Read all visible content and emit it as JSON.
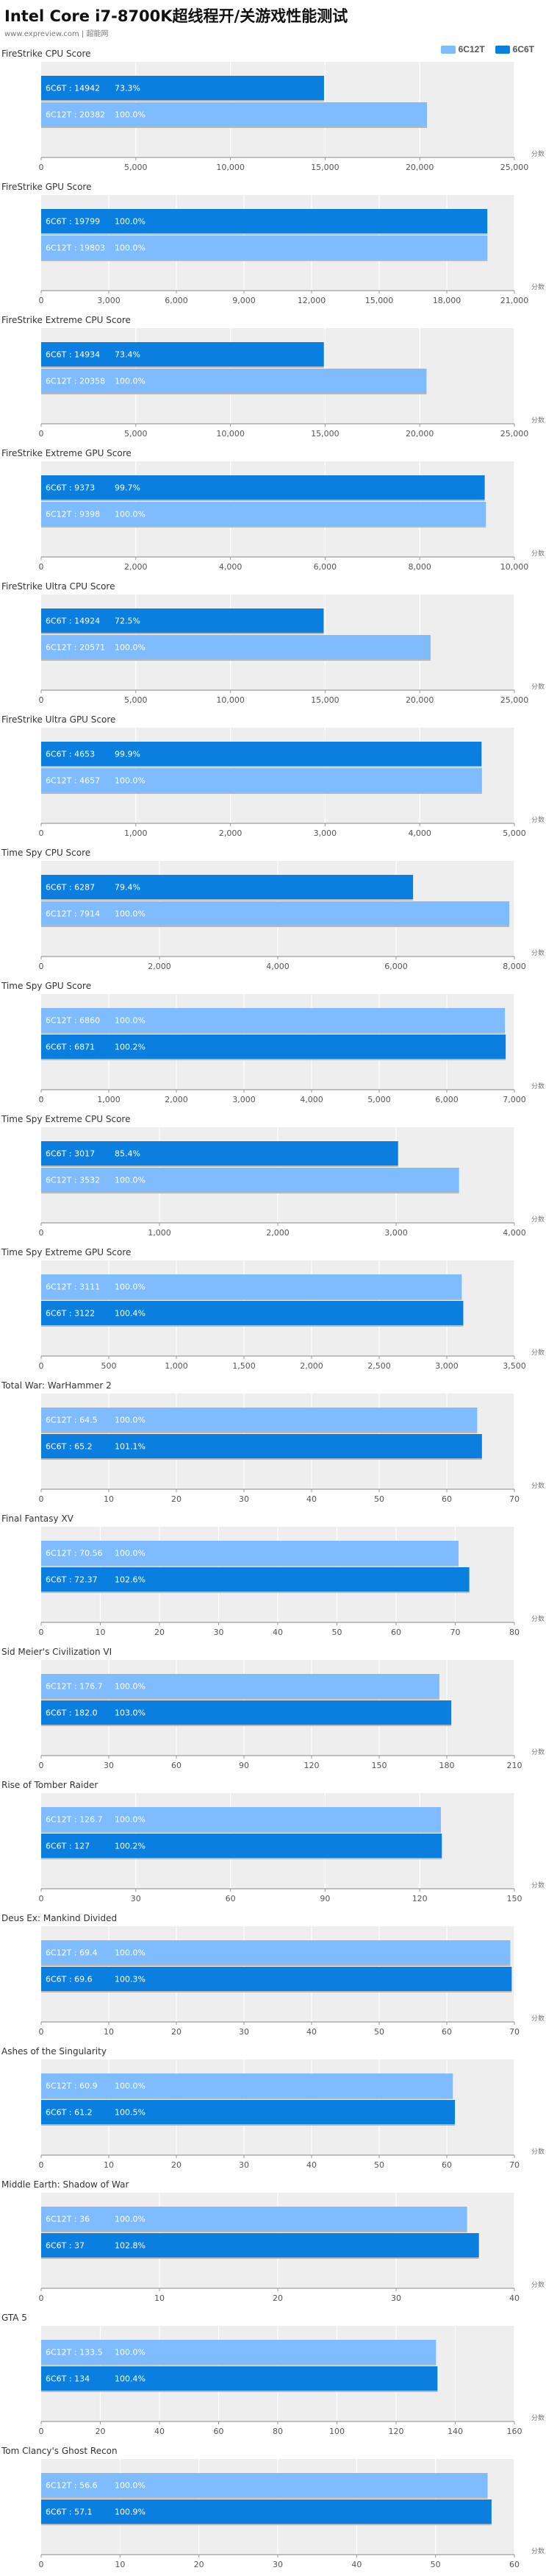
{
  "page": {
    "title": "Intel Core i7-8700K超线程开/关游戏性能测试",
    "site_note": "www.expreview.com | 超能网",
    "legend": [
      {
        "label": "6C12T",
        "color": "#7ebcff"
      },
      {
        "label": "6C6T",
        "color": "#0a7fe0"
      }
    ],
    "unit_label": "分数"
  },
  "chart_data": [
    {
      "type": "bar",
      "title": "FireStrike CPU Score",
      "xlim": [
        0,
        25000
      ],
      "ticks": [
        "0",
        "5,000",
        "10,000",
        "15,000",
        "20,000",
        "25,000"
      ],
      "bars": [
        {
          "label": "6C6T : 14942",
          "pct": "73.3%",
          "value": 14942,
          "color": "#0a7fe0"
        },
        {
          "label": "6C12T : 20382",
          "pct": "100.0%",
          "value": 20382,
          "color": "#7ebcff"
        }
      ]
    },
    {
      "type": "bar",
      "title": "FireStrike GPU Score",
      "xlim": [
        0,
        21000
      ],
      "ticks": [
        "0",
        "3,000",
        "6,000",
        "9,000",
        "12,000",
        "15,000",
        "18,000",
        "21,000"
      ],
      "bars": [
        {
          "label": "6C6T : 19799",
          "pct": "100.0%",
          "value": 19799,
          "color": "#0a7fe0"
        },
        {
          "label": "6C12T : 19803",
          "pct": "100.0%",
          "value": 19803,
          "color": "#7ebcff"
        }
      ]
    },
    {
      "type": "bar",
      "title": "FireStrike Extreme CPU Score",
      "xlim": [
        0,
        25000
      ],
      "ticks": [
        "0",
        "5,000",
        "10,000",
        "15,000",
        "20,000",
        "25,000"
      ],
      "bars": [
        {
          "label": "6C6T : 14934",
          "pct": "73.4%",
          "value": 14934,
          "color": "#0a7fe0"
        },
        {
          "label": "6C12T : 20358",
          "pct": "100.0%",
          "value": 20358,
          "color": "#7ebcff"
        }
      ]
    },
    {
      "type": "bar",
      "title": "FireStrike Extreme GPU Score",
      "xlim": [
        0,
        10000
      ],
      "ticks": [
        "0",
        "2,000",
        "4,000",
        "6,000",
        "8,000",
        "10,000"
      ],
      "bars": [
        {
          "label": "6C6T : 9373",
          "pct": "99.7%",
          "value": 9373,
          "color": "#0a7fe0"
        },
        {
          "label": "6C12T : 9398",
          "pct": "100.0%",
          "value": 9398,
          "color": "#7ebcff"
        }
      ]
    },
    {
      "type": "bar",
      "title": "FireStrike Ultra CPU Score",
      "xlim": [
        0,
        25000
      ],
      "ticks": [
        "0",
        "5,000",
        "10,000",
        "15,000",
        "20,000",
        "25,000"
      ],
      "bars": [
        {
          "label": "6C6T : 14924",
          "pct": "72.5%",
          "value": 14924,
          "color": "#0a7fe0"
        },
        {
          "label": "6C12T : 20571",
          "pct": "100.0%",
          "value": 20571,
          "color": "#7ebcff"
        }
      ]
    },
    {
      "type": "bar",
      "title": "FireStrike Ultra GPU Score",
      "xlim": [
        0,
        5000
      ],
      "ticks": [
        "0",
        "1,000",
        "2,000",
        "3,000",
        "4,000",
        "5,000"
      ],
      "bars": [
        {
          "label": "6C6T : 4653",
          "pct": "99.9%",
          "value": 4653,
          "color": "#0a7fe0"
        },
        {
          "label": "6C12T : 4657",
          "pct": "100.0%",
          "value": 4657,
          "color": "#7ebcff"
        }
      ]
    },
    {
      "type": "bar",
      "title": "Time Spy CPU Score",
      "xlim": [
        0,
        8000
      ],
      "ticks": [
        "0",
        "2,000",
        "4,000",
        "6,000",
        "8,000"
      ],
      "bars": [
        {
          "label": "6C6T : 6287",
          "pct": "79.4%",
          "value": 6287,
          "color": "#0a7fe0"
        },
        {
          "label": "6C12T : 7914",
          "pct": "100.0%",
          "value": 7914,
          "color": "#7ebcff"
        }
      ]
    },
    {
      "type": "bar",
      "title": "Time Spy GPU Score",
      "xlim": [
        0,
        7000
      ],
      "ticks": [
        "0",
        "1,000",
        "2,000",
        "3,000",
        "4,000",
        "5,000",
        "6,000",
        "7,000"
      ],
      "bars": [
        {
          "label": "6C12T : 6860",
          "pct": "100.0%",
          "value": 6860,
          "color": "#7ebcff"
        },
        {
          "label": "6C6T : 6871",
          "pct": "100.2%",
          "value": 6871,
          "color": "#0a7fe0"
        }
      ]
    },
    {
      "type": "bar",
      "title": "Time Spy Extreme CPU Score",
      "xlim": [
        0,
        4000
      ],
      "ticks": [
        "0",
        "1,000",
        "2,000",
        "3,000",
        "4,000"
      ],
      "bars": [
        {
          "label": "6C6T : 3017",
          "pct": "85.4%",
          "value": 3017,
          "color": "#0a7fe0"
        },
        {
          "label": "6C12T : 3532",
          "pct": "100.0%",
          "value": 3532,
          "color": "#7ebcff"
        }
      ]
    },
    {
      "type": "bar",
      "title": "Time Spy Extreme GPU Score",
      "xlim": [
        0,
        3500
      ],
      "ticks": [
        "0",
        "500",
        "1,000",
        "1,500",
        "2,000",
        "2,500",
        "3,000",
        "3,500"
      ],
      "bars": [
        {
          "label": "6C12T : 3111",
          "pct": "100.0%",
          "value": 3111,
          "color": "#7ebcff"
        },
        {
          "label": "6C6T : 3122",
          "pct": "100.4%",
          "value": 3122,
          "color": "#0a7fe0"
        }
      ]
    },
    {
      "type": "bar",
      "title": "Total War: WarHammer 2",
      "xlim": [
        0,
        70
      ],
      "ticks": [
        "0",
        "10",
        "20",
        "30",
        "40",
        "50",
        "60",
        "70"
      ],
      "bars": [
        {
          "label": "6C12T : 64.5",
          "pct": "100.0%",
          "value": 64.5,
          "color": "#7ebcff"
        },
        {
          "label": "6C6T : 65.2",
          "pct": "101.1%",
          "value": 65.2,
          "color": "#0a7fe0"
        }
      ]
    },
    {
      "type": "bar",
      "title": "Final Fantasy XV",
      "xlim": [
        0,
        80
      ],
      "ticks": [
        "0",
        "10",
        "20",
        "30",
        "40",
        "50",
        "60",
        "70",
        "80"
      ],
      "bars": [
        {
          "label": "6C12T : 70.56",
          "pct": "100.0%",
          "value": 70.56,
          "color": "#7ebcff"
        },
        {
          "label": "6C6T : 72.37",
          "pct": "102.6%",
          "value": 72.37,
          "color": "#0a7fe0"
        }
      ]
    },
    {
      "type": "bar",
      "title": "Sid Meier's Civilization VI",
      "xlim": [
        0,
        210
      ],
      "ticks": [
        "0",
        "30",
        "60",
        "90",
        "120",
        "150",
        "180",
        "210"
      ],
      "bars": [
        {
          "label": "6C12T : 176.7",
          "pct": "100.0%",
          "value": 176.7,
          "color": "#7ebcff"
        },
        {
          "label": "6C6T : 182.0",
          "pct": "103.0%",
          "value": 182.0,
          "color": "#0a7fe0"
        }
      ]
    },
    {
      "type": "bar",
      "title": "Rise of Tomber Raider",
      "xlim": [
        0,
        150
      ],
      "ticks": [
        "0",
        "30",
        "60",
        "90",
        "120",
        "150"
      ],
      "bars": [
        {
          "label": "6C12T : 126.7",
          "pct": "100.0%",
          "value": 126.7,
          "color": "#7ebcff"
        },
        {
          "label": "6C6T : 127",
          "pct": "100.2%",
          "value": 127,
          "color": "#0a7fe0"
        }
      ]
    },
    {
      "type": "bar",
      "title": "Deus Ex: Mankind Divided",
      "xlim": [
        0,
        70
      ],
      "ticks": [
        "0",
        "10",
        "20",
        "30",
        "40",
        "50",
        "60",
        "70"
      ],
      "bars": [
        {
          "label": "6C12T : 69.4",
          "pct": "100.0%",
          "value": 69.4,
          "color": "#7ebcff"
        },
        {
          "label": "6C6T : 69.6",
          "pct": "100.3%",
          "value": 69.6,
          "color": "#0a7fe0"
        }
      ]
    },
    {
      "type": "bar",
      "title": "Ashes of the Singularity",
      "xlim": [
        0,
        70
      ],
      "ticks": [
        "0",
        "10",
        "20",
        "30",
        "40",
        "50",
        "60",
        "70"
      ],
      "bars": [
        {
          "label": "6C12T : 60.9",
          "pct": "100.0%",
          "value": 60.9,
          "color": "#7ebcff"
        },
        {
          "label": "6C6T : 61.2",
          "pct": "100.5%",
          "value": 61.2,
          "color": "#0a7fe0"
        }
      ]
    },
    {
      "type": "bar",
      "title": "Middle Earth: Shadow of War",
      "xlim": [
        0,
        40
      ],
      "ticks": [
        "0",
        "10",
        "20",
        "30",
        "40"
      ],
      "bars": [
        {
          "label": "6C12T : 36",
          "pct": "100.0%",
          "value": 36,
          "color": "#7ebcff"
        },
        {
          "label": "6C6T : 37",
          "pct": "102.8%",
          "value": 37,
          "color": "#0a7fe0"
        }
      ]
    },
    {
      "type": "bar",
      "title": "GTA 5",
      "xlim": [
        0,
        160
      ],
      "ticks": [
        "0",
        "20",
        "40",
        "60",
        "80",
        "100",
        "120",
        "140",
        "160"
      ],
      "bars": [
        {
          "label": "6C12T : 133.5",
          "pct": "100.0%",
          "value": 133.5,
          "color": "#7ebcff"
        },
        {
          "label": "6C6T : 134",
          "pct": "100.4%",
          "value": 134,
          "color": "#0a7fe0"
        }
      ]
    },
    {
      "type": "bar",
      "title": "Tom Clancy's Ghost Recon",
      "xlim": [
        0,
        60
      ],
      "ticks": [
        "0",
        "10",
        "20",
        "30",
        "40",
        "50",
        "60"
      ],
      "bars": [
        {
          "label": "6C12T : 56.6",
          "pct": "100.0%",
          "value": 56.6,
          "color": "#7ebcff"
        },
        {
          "label": "6C6T : 57.1",
          "pct": "100.9%",
          "value": 57.1,
          "color": "#0a7fe0"
        }
      ]
    }
  ]
}
